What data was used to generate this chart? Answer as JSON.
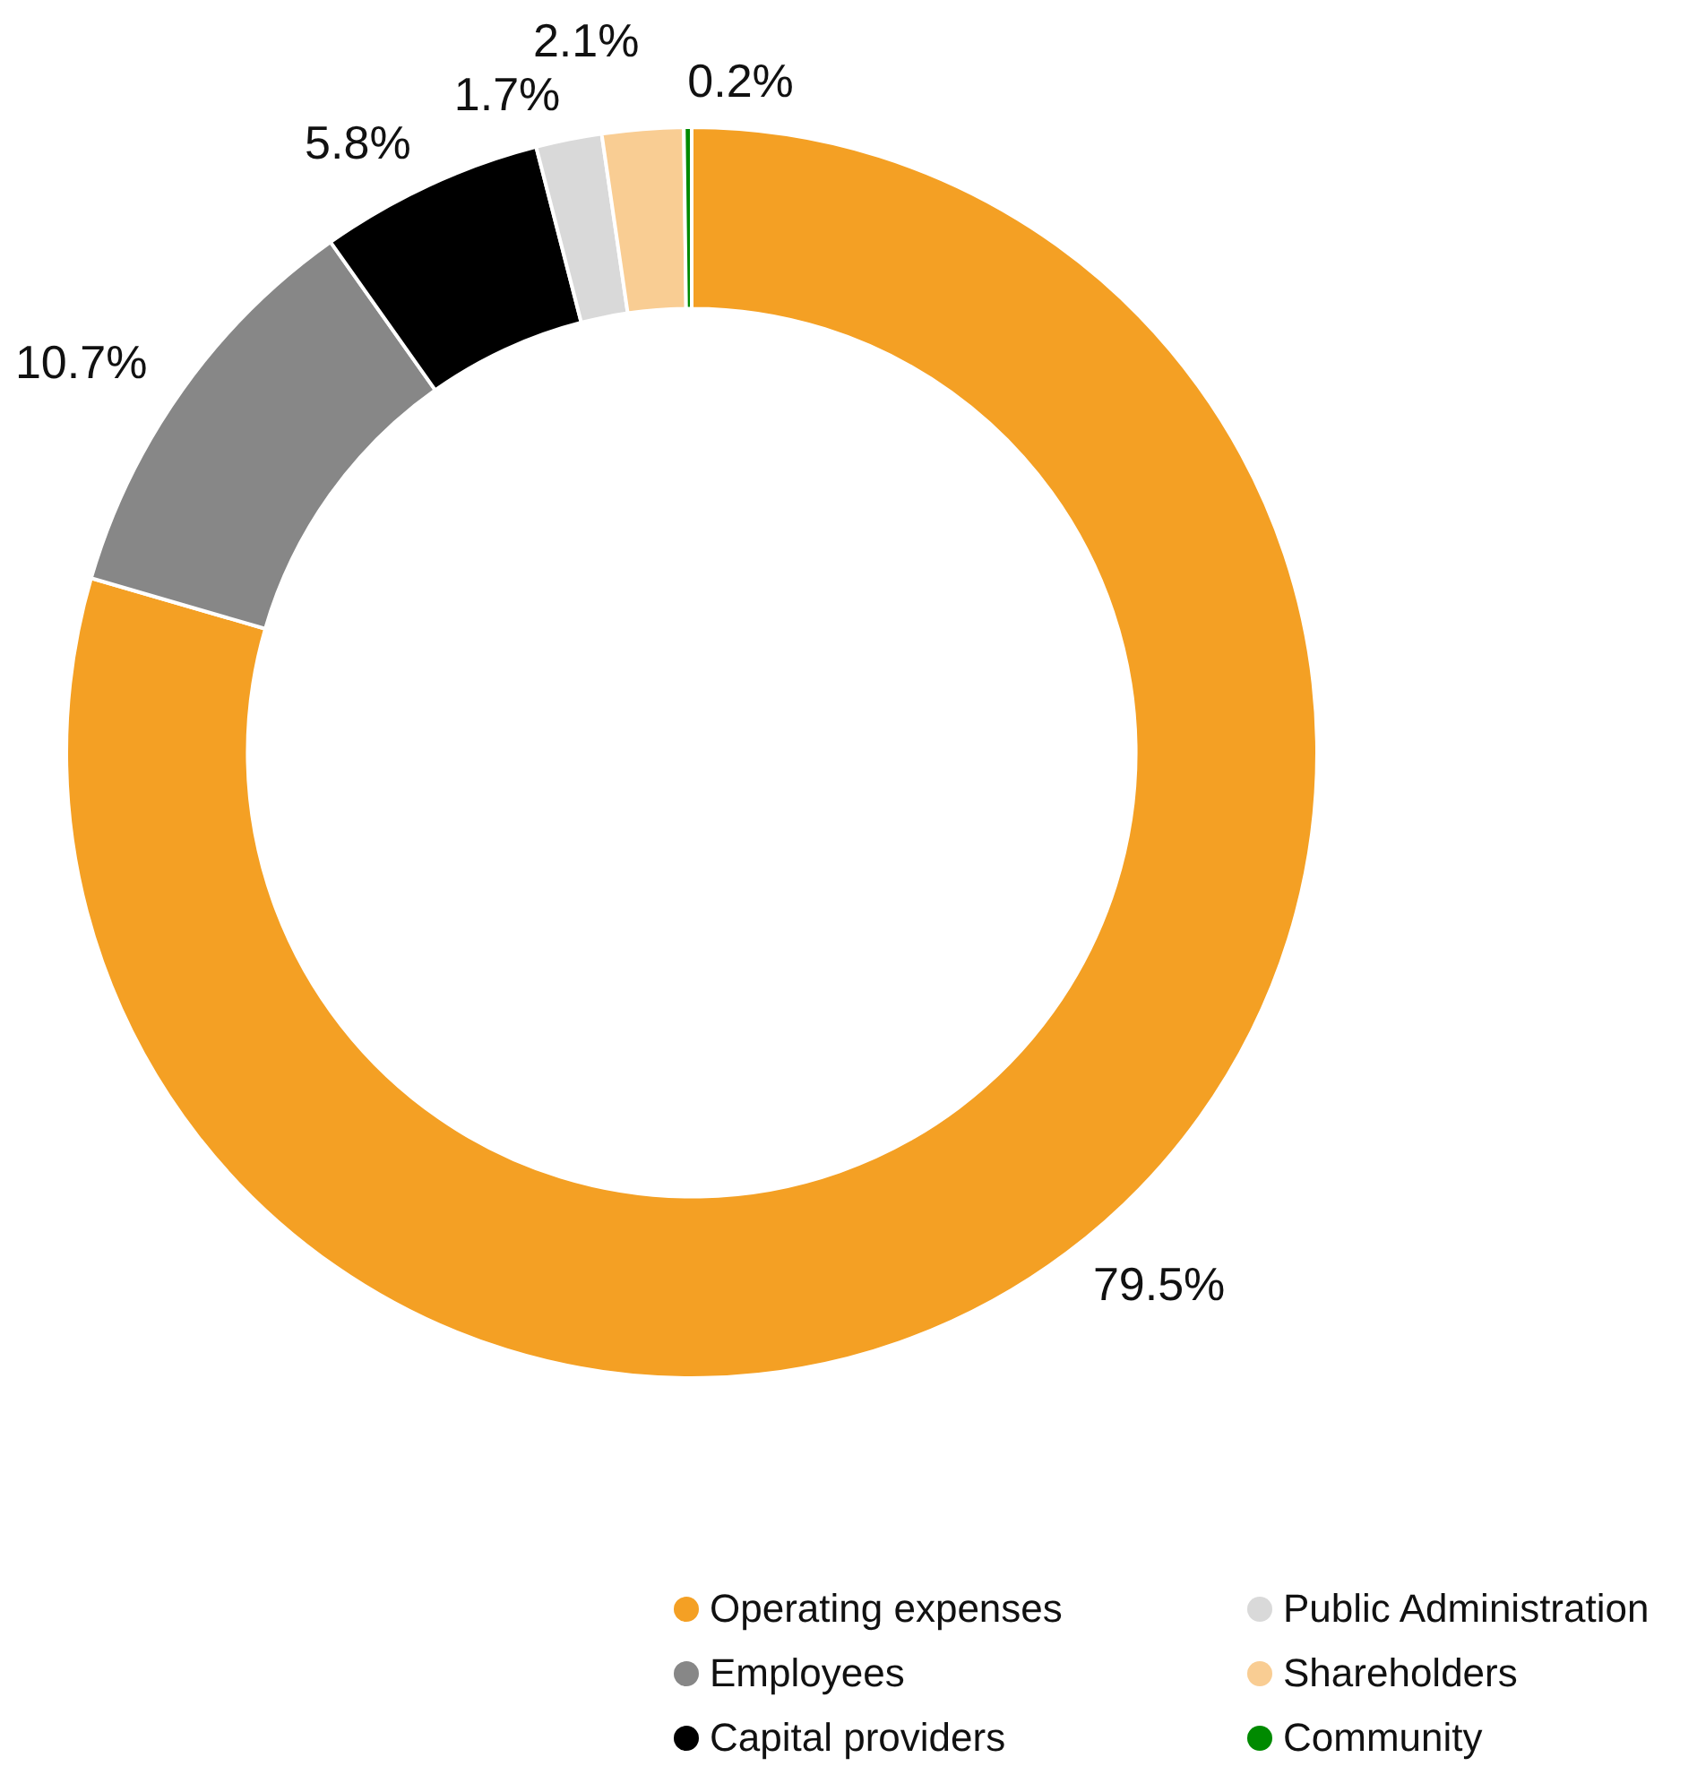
{
  "chart_data": {
    "type": "donut",
    "categories": [
      "Operating expenses",
      "Employees",
      "Capital providers",
      "Public Administration",
      "Shareholders",
      "Community"
    ],
    "values": [
      79.5,
      10.7,
      5.8,
      1.7,
      2.1,
      0.2
    ],
    "colors": [
      "#f4a024",
      "#878787",
      "#000000",
      "#d9d9d9",
      "#f9cd93",
      "#008a00"
    ],
    "value_labels": [
      "79.5%",
      "10.7%",
      "5.8%",
      "1.7%",
      "2.1%",
      "0.2%"
    ],
    "legend": "bottom right"
  }
}
